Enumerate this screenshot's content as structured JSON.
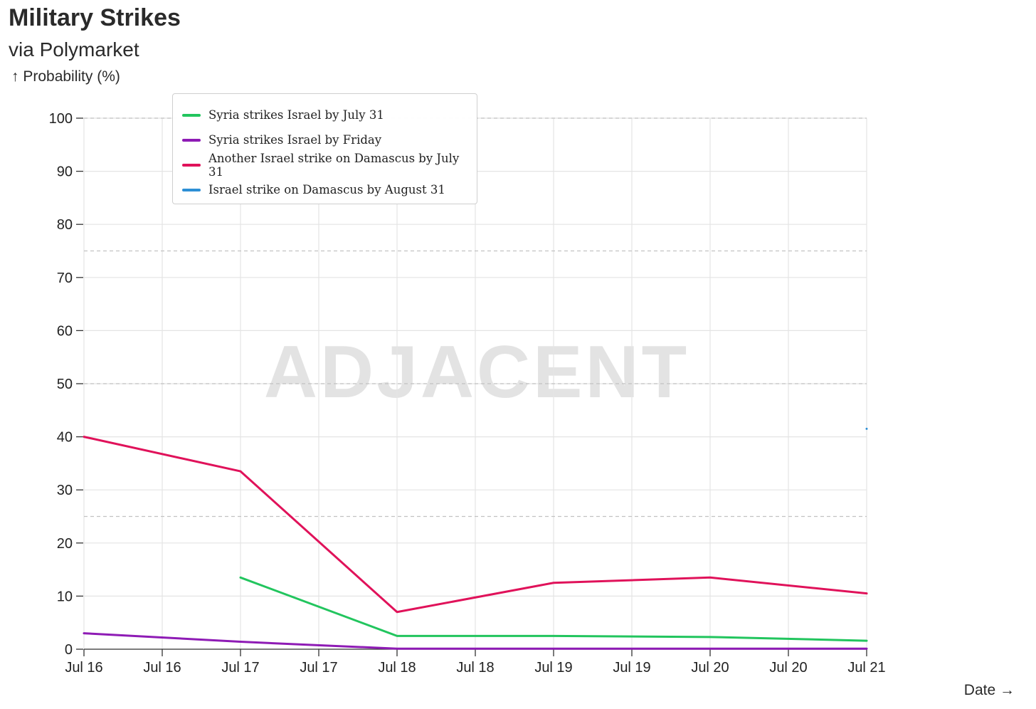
{
  "header": {
    "title": "Military Strikes",
    "subtitle": "via Polymarket",
    "y_axis_label": "↑ Probability (%)",
    "x_axis_label": "Date →"
  },
  "watermark": "ADJACENT",
  "chart_data": {
    "type": "line",
    "title": "Military Strikes",
    "subtitle": "via Polymarket",
    "ylabel": "↑ Probability (%)",
    "xlabel": "Date →",
    "ylim": [
      0,
      100
    ],
    "yticks": [
      0,
      10,
      20,
      30,
      40,
      50,
      60,
      70,
      80,
      90,
      100
    ],
    "xlim": [
      0,
      5
    ],
    "xticks": [
      0,
      0.5,
      1,
      1.5,
      2,
      2.5,
      3,
      3.5,
      4,
      4.5,
      5
    ],
    "xtick_labels": [
      "Jul 16",
      "Jul 16",
      "Jul 17",
      "Jul 17",
      "Jul 18",
      "Jul 18",
      "Jul 19",
      "Jul 19",
      "Jul 20",
      "Jul 20",
      "Jul 21"
    ],
    "dashed_reference_lines": [
      25,
      50,
      75,
      100
    ],
    "grid": true,
    "legend_position": "top-left",
    "series": [
      {
        "name": "Syria strikes Israel by July 31",
        "color": "#22c55e",
        "x": [
          1,
          2,
          3,
          4,
          5
        ],
        "y": [
          13.5,
          2.5,
          2.5,
          2.3,
          1.6
        ]
      },
      {
        "name": "Syria strikes Israel by Friday",
        "color": "#8e1bb5",
        "x": [
          0,
          1,
          2,
          3,
          4,
          5
        ],
        "y": [
          3.0,
          1.4,
          0.1,
          0.1,
          0.1,
          0.1
        ]
      },
      {
        "name": "Another Israel strike on Damascus by July 31",
        "color": "#e0125a",
        "x": [
          0,
          1,
          2,
          3,
          4,
          5
        ],
        "y": [
          40,
          33.5,
          7,
          12.5,
          13.5,
          10.5
        ]
      },
      {
        "name": "Israel strike on Damascus by August 31",
        "color": "#2d8fd5",
        "x": [
          5
        ],
        "y": [
          41.5
        ]
      }
    ]
  }
}
